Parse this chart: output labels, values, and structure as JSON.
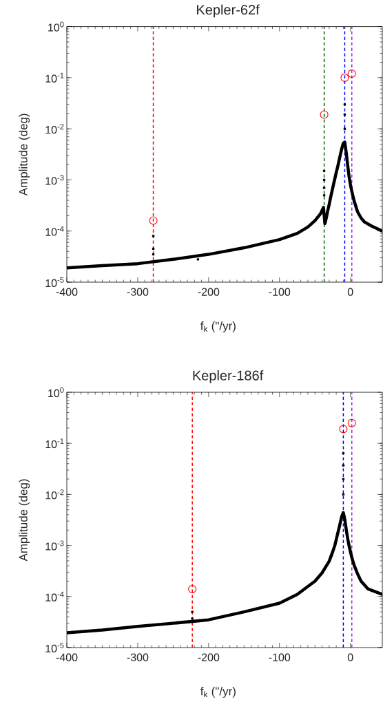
{
  "chart_data": [
    {
      "type": "scatter",
      "title": "Kepler-62f",
      "xlabel": "f$_{k}$ (\"/yr)",
      "ylabel": "Amplitude (deg)",
      "log": "y",
      "grid": false,
      "xlim": [
        -400,
        45
      ],
      "ylim": [
        1e-05,
        1
      ],
      "xticks": [
        -400,
        -300,
        -200,
        -100,
        0
      ],
      "yticks": [
        {
          "value": 1e-05,
          "label": "10$^{-5}$"
        },
        {
          "value": 0.0001,
          "label": "10$^{-4}$"
        },
        {
          "value": 0.001,
          "label": "10$^{-3}$"
        },
        {
          "value": 0.01,
          "label": "10$^{-2}$"
        },
        {
          "value": 0.1,
          "label": "10$^{-1}$"
        },
        {
          "value": 1,
          "label": "10$^{0}$"
        }
      ],
      "series": [
        {
          "type": "line",
          "color": "#000000",
          "marker": "none",
          "x": [
            -400,
            -350,
            -300,
            -250,
            -200,
            -150,
            -100,
            -75,
            -60,
            -50,
            -42,
            -38,
            -36,
            -34,
            -32,
            -30,
            -28,
            -26,
            -24,
            -22,
            -20,
            -18,
            -16,
            -14,
            -12,
            -10,
            -8,
            -6,
            -4,
            -2,
            0,
            2,
            5,
            10,
            15,
            20,
            30,
            45
          ],
          "values": [
            1.9e-05,
            2.1e-05,
            2.3e-05,
            2.8e-05,
            3.5e-05,
            4.7e-05,
            6.8e-05,
            9e-05,
            0.00012,
            0.00016,
            0.00022,
            0.00029,
            0.00014,
            0.00018,
            0.00025,
            0.00033,
            0.00045,
            0.0006,
            0.0008,
            0.00105,
            0.0014,
            0.0018,
            0.0024,
            0.0032,
            0.0042,
            0.0052,
            0.0055,
            0.0035,
            0.002,
            0.0012,
            0.00081,
            0.0006,
            0.0004,
            0.00024,
            0.00018,
            0.00015,
            0.000125,
            0.0001
          ]
        },
        {
          "color": "#000000",
          "marker": "circle",
          "x": [
            -278,
            -278,
            -278,
            -215,
            -37,
            -37,
            -37,
            -37,
            -8,
            -8,
            -8
          ],
          "values": [
            8e-05,
            4.5e-05,
            3.5e-05,
            2.8e-05,
            0.0015,
            0.001,
            0.0007,
            0.0005,
            0.01,
            0.019,
            0.03
          ]
        },
        {
          "color": "#ff0000",
          "marker": "circle",
          "x": [
            -278,
            -37,
            -8,
            2
          ],
          "values": [
            0.00016,
            0.019,
            0.1,
            0.12
          ]
        }
      ],
      "ref_lines": [
        {
          "axis": "x",
          "value": -278,
          "color": "#ff0000",
          "line_style": "dashed"
        },
        {
          "axis": "x",
          "value": -37,
          "color": "#006400",
          "line_style": "dashed"
        },
        {
          "axis": "x",
          "value": -8,
          "color": "#0000ff",
          "line_style": "dashed"
        },
        {
          "axis": "x",
          "value": 2,
          "color": "#a020f0",
          "line_style": "dashed"
        }
      ]
    },
    {
      "type": "scatter",
      "title": "Kepler-186f",
      "xlabel": "f$_{k}$ (\"/yr)",
      "ylabel": "Amplitude (deg)",
      "log": "y",
      "grid": false,
      "xlim": [
        -400,
        45
      ],
      "ylim": [
        1e-05,
        1
      ],
      "xticks": [
        -400,
        -300,
        -200,
        -100,
        0
      ],
      "yticks": [
        {
          "value": 1e-05,
          "label": "10$^{-5}$"
        },
        {
          "value": 0.0001,
          "label": "10$^{-4}$"
        },
        {
          "value": 0.001,
          "label": "10$^{-3}$"
        },
        {
          "value": 0.01,
          "label": "10$^{-2}$"
        },
        {
          "value": 0.1,
          "label": "10$^{-1}$"
        },
        {
          "value": 1,
          "label": "10$^{0}$"
        }
      ],
      "series": [
        {
          "type": "line",
          "color": "#000000",
          "marker": "none",
          "x": [
            -400,
            -350,
            -300,
            -250,
            -200,
            -150,
            -100,
            -75,
            -50,
            -40,
            -30,
            -25,
            -22,
            -20,
            -18,
            -16,
            -14,
            -12,
            -10,
            -8,
            -6,
            -4,
            -2,
            0,
            2,
            5,
            10,
            15,
            25,
            45
          ],
          "values": [
            1.95e-05,
            2.2e-05,
            2.6e-05,
            3e-05,
            3.5e-05,
            5e-05,
            7.4e-05,
            0.00011,
            0.0002,
            0.00029,
            0.00049,
            0.00075,
            0.001,
            0.0013,
            0.0017,
            0.0022,
            0.0029,
            0.0038,
            0.0044,
            0.0033,
            0.0021,
            0.0014,
            0.001,
            0.00076,
            0.00058,
            0.00042,
            0.00028,
            0.0002,
            0.00014,
            0.00011
          ]
        },
        {
          "color": "#000000",
          "marker": "circle",
          "x": [
            -223,
            -223,
            -10,
            -10,
            -10,
            -10
          ],
          "values": [
            5e-05,
            3.7e-05,
            0.01,
            0.02,
            0.037,
            0.064
          ]
        },
        {
          "color": "#ff0000",
          "marker": "circle",
          "x": [
            -223,
            -10,
            2
          ],
          "values": [
            0.00014,
            0.19,
            0.25
          ]
        }
      ],
      "ref_lines": [
        {
          "axis": "x",
          "value": -223,
          "color": "#ff0000",
          "line_style": "dashed"
        },
        {
          "axis": "x",
          "value": -10,
          "color": "#0000ff",
          "line_style": "dashed"
        },
        {
          "axis": "x",
          "value": 2,
          "color": "#a020f0",
          "line_style": "dashed"
        }
      ]
    }
  ]
}
